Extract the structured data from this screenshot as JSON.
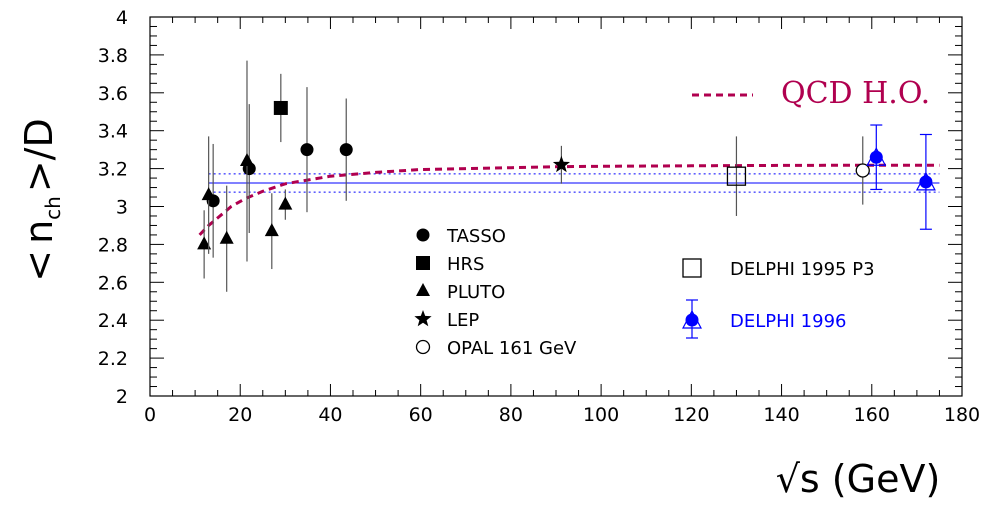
{
  "chart_data": {
    "type": "scatter",
    "xlabel": "√s (GeV)",
    "ylabel": "<n_ch>/D",
    "ylabel_parts": {
      "open": "<",
      "n": "n",
      "sub": "ch",
      "close": ">",
      "slash": "/D"
    },
    "xlim": [
      0,
      180
    ],
    "ylim": [
      2,
      4
    ],
    "xticks": [
      "0",
      "20",
      "40",
      "60",
      "80",
      "100",
      "120",
      "140",
      "160",
      "180"
    ],
    "yticks": [
      "2",
      "2.2",
      "2.4",
      "2.6",
      "2.8",
      "3",
      "3.2",
      "3.4",
      "3.6",
      "3.8",
      "4"
    ],
    "series": [
      {
        "name": "TASSO",
        "marker": "circle-filled",
        "color": "#000000",
        "points": [
          {
            "x": 14,
            "y": 3.03,
            "err": 0.3
          },
          {
            "x": 22,
            "y": 3.2,
            "err": 0.34
          },
          {
            "x": 34.8,
            "y": 3.3,
            "err": 0.33
          },
          {
            "x": 43.5,
            "y": 3.3,
            "err": 0.27
          }
        ]
      },
      {
        "name": "HRS",
        "marker": "square-filled",
        "color": "#000000",
        "points": [
          {
            "x": 29,
            "y": 3.52,
            "err": 0.18
          }
        ]
      },
      {
        "name": "PLUTO",
        "marker": "triangle-filled",
        "color": "#000000",
        "points": [
          {
            "x": 12,
            "y": 2.8,
            "err": 0.18
          },
          {
            "x": 13,
            "y": 3.06,
            "err": 0.31
          },
          {
            "x": 17,
            "y": 2.83,
            "err": 0.28
          },
          {
            "x": 21.5,
            "y": 3.24,
            "err": 0.53
          },
          {
            "x": 27,
            "y": 2.87,
            "err": 0.2
          },
          {
            "x": 30,
            "y": 3.01,
            "err": 0.08
          }
        ]
      },
      {
        "name": "LEP",
        "marker": "star",
        "color": "#000000",
        "points": [
          {
            "x": 91.2,
            "y": 3.22,
            "err": 0.1
          }
        ]
      },
      {
        "name": "OPAL 161 GeV",
        "marker": "circle-open",
        "color": "#000000",
        "points": [
          {
            "x": 158,
            "y": 3.19,
            "err": 0.18
          }
        ]
      },
      {
        "name": "DELPHI 1995 P3",
        "marker": "square-open",
        "color": "#000000",
        "points": [
          {
            "x": 130,
            "y": 3.16,
            "err": 0.21
          }
        ]
      },
      {
        "name": "DELPHI 1996",
        "marker": "circle-filled-triangle",
        "color": "#0000ff",
        "points": [
          {
            "x": 161,
            "y": 3.26,
            "err": 0.17
          },
          {
            "x": 172,
            "y": 3.13,
            "err": 0.25
          }
        ]
      }
    ],
    "qcd_curve": {
      "name": "QCD H.O.",
      "color": "#b0004f",
      "x": [
        11,
        13,
        15,
        18,
        21,
        25,
        30,
        35,
        40,
        50,
        60,
        70,
        80,
        90,
        100,
        120,
        140,
        160,
        175
      ],
      "y": [
        2.85,
        2.9,
        2.94,
        3.0,
        3.04,
        3.08,
        3.12,
        3.14,
        3.16,
        3.18,
        3.195,
        3.2,
        3.205,
        3.21,
        3.212,
        3.215,
        3.217,
        3.218,
        3.218
      ]
    },
    "fit_band": {
      "center": 3.124,
      "low": 3.076,
      "high": 3.172,
      "xrange": [
        13,
        175
      ],
      "color": "#0000ff"
    },
    "grid": false,
    "legend_position": "bottom-center and bottom-right"
  }
}
